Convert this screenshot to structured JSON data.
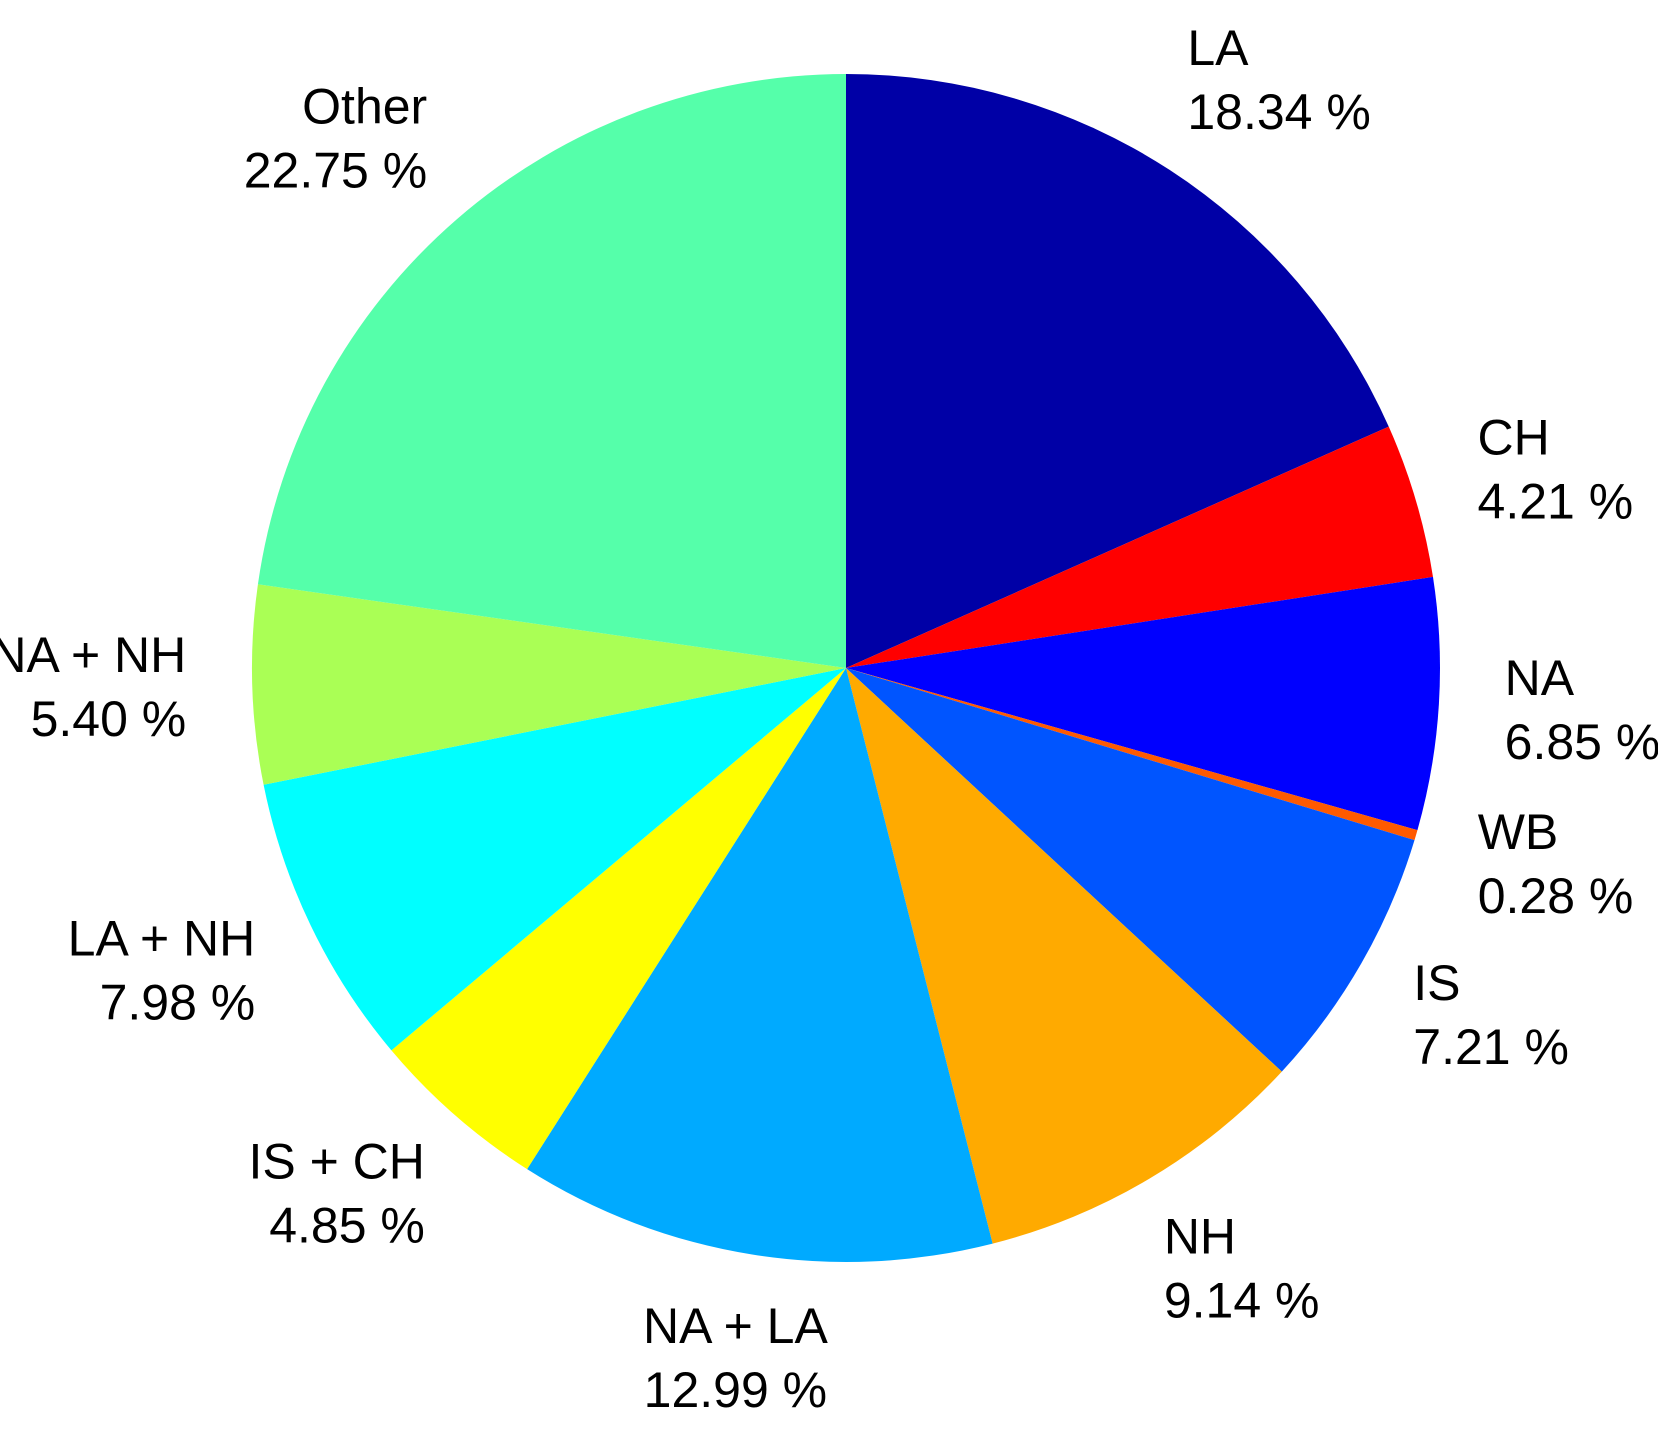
{
  "chart_data": {
    "type": "pie",
    "title": "",
    "start": "top",
    "direction": "clockwise",
    "slices": [
      {
        "label": "LA",
        "value": 18.34,
        "value_text": "18.34 %",
        "color": "#0000A6"
      },
      {
        "label": "CH",
        "value": 4.21,
        "value_text": "4.21 %",
        "color": "#FF0000"
      },
      {
        "label": "NA",
        "value": 6.85,
        "value_text": "6.85 %",
        "color": "#0000FF"
      },
      {
        "label": "WB",
        "value": 0.28,
        "value_text": "0.28 %",
        "color": "#FF5A00"
      },
      {
        "label": "IS",
        "value": 7.21,
        "value_text": "7.21 %",
        "color": "#0055FF"
      },
      {
        "label": "NH",
        "value": 9.14,
        "value_text": "9.14 %",
        "color": "#FFAA00"
      },
      {
        "label": "NA + LA",
        "value": 12.99,
        "value_text": "12.99 %",
        "color": "#00AAFF"
      },
      {
        "label": "IS + CH",
        "value": 4.85,
        "value_text": "4.85 %",
        "color": "#FFFF00"
      },
      {
        "label": "LA + NH",
        "value": 7.98,
        "value_text": "7.98 %",
        "color": "#00FFFF"
      },
      {
        "label": "NA + NH",
        "value": 5.4,
        "value_text": "5.40 %",
        "color": "#AAFF55"
      },
      {
        "label": "Other",
        "value": 22.75,
        "value_text": "22.75 %",
        "color": "#55FFAA"
      }
    ]
  }
}
